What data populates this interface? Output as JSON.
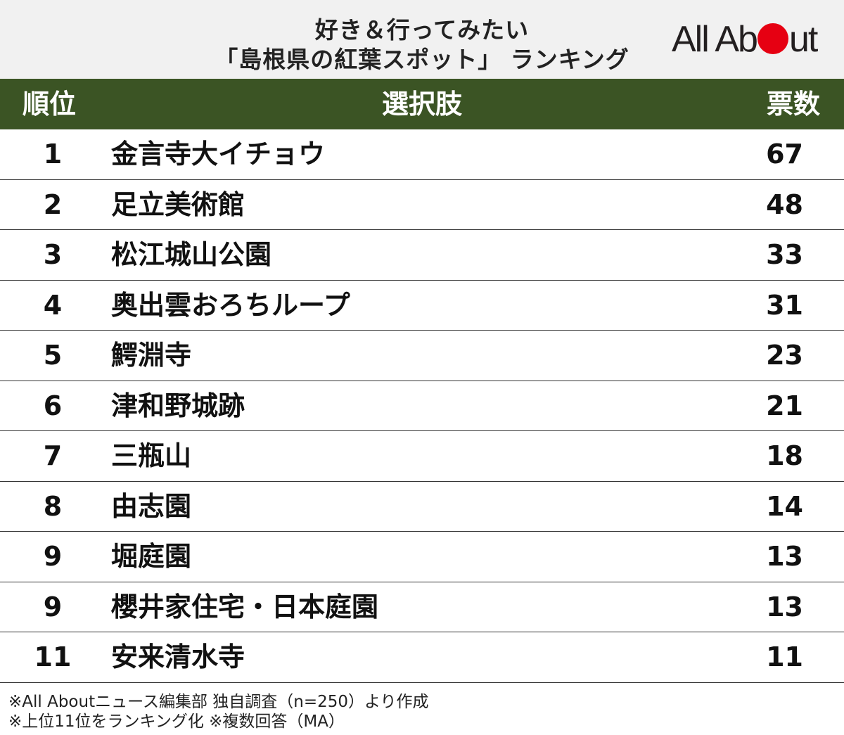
{
  "title": {
    "line1": "好き＆行ってみたい",
    "line2": "「島根県の紅葉スポット」 ランキング"
  },
  "logo": {
    "text_before": "All Ab",
    "text_after": "ut"
  },
  "colors": {
    "header_bg": "#3b5424",
    "title_bg": "#f1f1f1",
    "logo_dot": "#e60012"
  },
  "table": {
    "headers": {
      "rank": "順位",
      "choice": "選択肢",
      "votes": "票数"
    },
    "rows": [
      {
        "rank": "1",
        "name": "金言寺大イチョウ",
        "votes": "67"
      },
      {
        "rank": "2",
        "name": "足立美術館",
        "votes": "48"
      },
      {
        "rank": "3",
        "name": "松江城山公園",
        "votes": "33"
      },
      {
        "rank": "4",
        "name": "奥出雲おろちループ",
        "votes": "31"
      },
      {
        "rank": "5",
        "name": "鰐淵寺",
        "votes": "23"
      },
      {
        "rank": "6",
        "name": "津和野城跡",
        "votes": "21"
      },
      {
        "rank": "7",
        "name": "三瓶山",
        "votes": "18"
      },
      {
        "rank": "8",
        "name": "由志園",
        "votes": "14"
      },
      {
        "rank": "9",
        "name": "堀庭園",
        "votes": "13"
      },
      {
        "rank": "9",
        "name": "櫻井家住宅・日本庭園",
        "votes": "13"
      },
      {
        "rank": "11",
        "name": "安来清水寺",
        "votes": "11"
      }
    ]
  },
  "footnotes": {
    "line1": "※All Aboutニュース編集部 独自調査（n=250）より作成",
    "line2": "※上位11位をランキング化 ※複数回答（MA）"
  }
}
